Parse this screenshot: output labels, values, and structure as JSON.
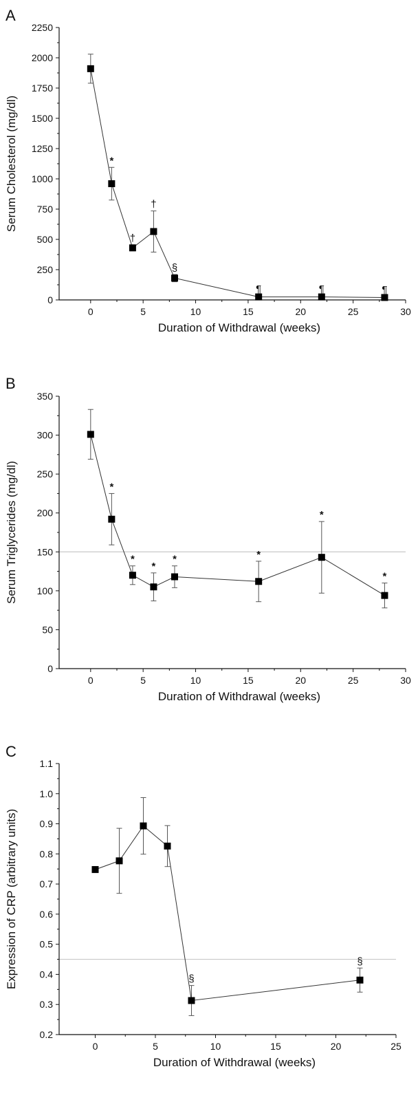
{
  "chart_data": [
    {
      "type": "line",
      "panel_label": "A",
      "xlabel": "Duration of Withdrawal (weeks)",
      "ylabel": "Serum Cholesterol (mg/dl)",
      "xlim": [
        -3,
        30
      ],
      "ylim": [
        0,
        2250
      ],
      "xticks": [
        0,
        5,
        10,
        15,
        20,
        25,
        30
      ],
      "yticks": [
        0,
        250,
        500,
        750,
        1000,
        1250,
        1500,
        1750,
        2000,
        2250
      ],
      "reference_line": null,
      "points": [
        {
          "x": 0,
          "y": 1910,
          "err": 120,
          "mark": ""
        },
        {
          "x": 2,
          "y": 960,
          "err": 135,
          "mark": "*"
        },
        {
          "x": 4,
          "y": 430,
          "err": 25,
          "mark": "†"
        },
        {
          "x": 6,
          "y": 565,
          "err": 170,
          "mark": "†"
        },
        {
          "x": 8,
          "y": 180,
          "err": 30,
          "mark": "§"
        },
        {
          "x": 16,
          "y": 25,
          "err": 8,
          "mark": "¶"
        },
        {
          "x": 22,
          "y": 25,
          "err": 8,
          "mark": "¶"
        },
        {
          "x": 28,
          "y": 20,
          "err": 8,
          "mark": "¶"
        }
      ]
    },
    {
      "type": "line",
      "panel_label": "B",
      "xlabel": "Duration of Withdrawal (weeks)",
      "ylabel": "Serum Triglycerides (mg/dl)",
      "xlim": [
        -3,
        30
      ],
      "ylim": [
        0,
        350
      ],
      "xticks": [
        0,
        5,
        10,
        15,
        20,
        25,
        30
      ],
      "yticks": [
        0,
        50,
        100,
        150,
        200,
        250,
        300,
        350
      ],
      "reference_line": 150,
      "points": [
        {
          "x": 0,
          "y": 301,
          "err": 32,
          "mark": ""
        },
        {
          "x": 2,
          "y": 192,
          "err": 33,
          "mark": "*"
        },
        {
          "x": 4,
          "y": 120,
          "err": 12,
          "mark": "*"
        },
        {
          "x": 6,
          "y": 105,
          "err": 18,
          "mark": "*"
        },
        {
          "x": 8,
          "y": 118,
          "err": 14,
          "mark": "*"
        },
        {
          "x": 16,
          "y": 112,
          "err": 26,
          "mark": "*"
        },
        {
          "x": 22,
          "y": 143,
          "err": 46,
          "mark": "*"
        },
        {
          "x": 28,
          "y": 94,
          "err": 16,
          "mark": "*"
        }
      ]
    },
    {
      "type": "line",
      "panel_label": "C",
      "xlabel": "Duration of Withdrawal (weeks)",
      "ylabel": "Expression of CRP (arbitrary units)",
      "xlim": [
        -3,
        25
      ],
      "ylim": [
        0.2,
        1.1
      ],
      "xticks": [
        0,
        5,
        10,
        15,
        20,
        25
      ],
      "yticks": [
        0.2,
        0.3,
        0.4,
        0.5,
        0.6,
        0.7,
        0.8,
        0.9,
        1.0,
        1.1
      ],
      "reference_line": 0.45,
      "points": [
        {
          "x": 0,
          "y": 0.748,
          "err": 0.01,
          "mark": ""
        },
        {
          "x": 2,
          "y": 0.777,
          "err": 0.108,
          "mark": ""
        },
        {
          "x": 4,
          "y": 0.893,
          "err": 0.094,
          "mark": ""
        },
        {
          "x": 6,
          "y": 0.826,
          "err": 0.068,
          "mark": ""
        },
        {
          "x": 8,
          "y": 0.313,
          "err": 0.05,
          "mark": "§"
        },
        {
          "x": 22,
          "y": 0.381,
          "err": 0.04,
          "mark": "§"
        }
      ]
    }
  ]
}
